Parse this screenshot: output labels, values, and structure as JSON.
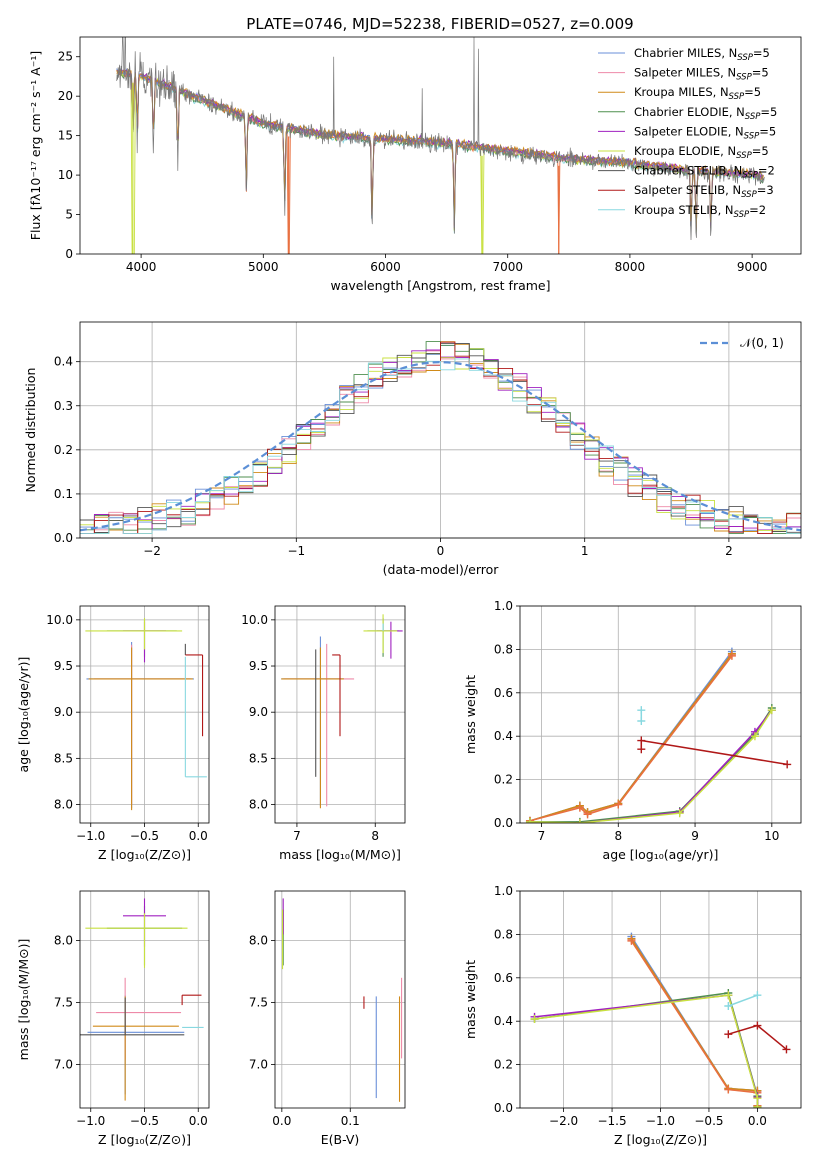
{
  "colors": {
    "Chabrier MILES": "#6a8fd8",
    "Salpeter MILES": "#ee8aa8",
    "Kroupa MILES": "#d08a18",
    "Chabrier ELODIE": "#4f8f4f",
    "Salpeter ELODIE": "#a020c0",
    "Kroupa ELODIE": "#c8e040",
    "Chabrier STELIB": "#555555",
    "Salpeter STELIB": "#b01818",
    "Kroupa STELIB": "#88d8e0",
    "normal": "#5b8fd6",
    "orange": "#e87040"
  },
  "chart_data": [
    {
      "id": "spectrum",
      "type": "line",
      "title": "PLATE=0746, MJD=52238, FIBERID=0527, z=0.009",
      "xlabel": "wavelength [Angstrom, rest frame]",
      "ylabel": "Flux [fλ10⁻¹⁷ erg cm⁻² s⁻¹ A⁻¹]",
      "xlim": [
        3500,
        9400
      ],
      "ylim": [
        0,
        27.5
      ],
      "xticks": [
        "4000",
        "5000",
        "6000",
        "7000",
        "8000",
        "9000"
      ],
      "yticks": [
        "0",
        "5",
        "10",
        "15",
        "20",
        "25"
      ],
      "grid": false,
      "legend_position": "top-right",
      "legend": [
        {
          "key": "Chabrier MILES",
          "name": "Chabrier MILES, N",
          "sub": "SSP",
          "suffix": "=5"
        },
        {
          "key": "Salpeter MILES",
          "name": "Salpeter MILES, N",
          "sub": "SSP",
          "suffix": "=5"
        },
        {
          "key": "Kroupa MILES",
          "name": "Kroupa MILES, N",
          "sub": "SSP",
          "suffix": "=5"
        },
        {
          "key": "Chabrier ELODIE",
          "name": "Chabrier ELODIE, N",
          "sub": "SSP",
          "suffix": "=5"
        },
        {
          "key": "Salpeter ELODIE",
          "name": "Salpeter ELODIE, N",
          "sub": "SSP",
          "suffix": "=5"
        },
        {
          "key": "Kroupa ELODIE",
          "name": "Kroupa ELODIE, N",
          "sub": "SSP",
          "suffix": "=5"
        },
        {
          "key": "Chabrier STELIB",
          "name": "Chabrier STELIB, N",
          "sub": "SSP",
          "suffix": "=2"
        },
        {
          "key": "Salpeter STELIB",
          "name": "Salpeter STELIB, N",
          "sub": "SSP",
          "suffix": "=3"
        },
        {
          "key": "Kroupa STELIB",
          "name": "Kroupa STELIB, N",
          "sub": "SSP",
          "suffix": "=2"
        }
      ],
      "continuum": [
        [
          3800,
          23
        ],
        [
          4000,
          22.5
        ],
        [
          4500,
          19.5
        ],
        [
          5000,
          16.5
        ],
        [
          5500,
          15
        ],
        [
          6000,
          14.5
        ],
        [
          6500,
          14
        ],
        [
          7000,
          13
        ],
        [
          7500,
          12
        ],
        [
          8000,
          11.5
        ],
        [
          8500,
          10.5
        ],
        [
          9000,
          10
        ],
        [
          9100,
          9.5
        ]
      ],
      "absorption_lines": [
        [
          3934,
          8
        ],
        [
          3969,
          9
        ],
        [
          4101,
          10
        ],
        [
          4300,
          10
        ],
        [
          4861,
          11
        ],
        [
          5175,
          12
        ],
        [
          5890,
          13
        ],
        [
          6563,
          12
        ],
        [
          8500,
          9
        ],
        [
          8542,
          9
        ],
        [
          8662,
          9
        ]
      ],
      "spikes": [
        [
          5577,
          25
        ],
        [
          6300,
          21
        ],
        [
          6725,
          27.5
        ],
        [
          6760,
          26
        ],
        [
          3850,
          27.5
        ],
        [
          3870,
          27.5
        ]
      ],
      "dropouts": [
        [
          3920,
          3945,
          "Kroupa ELODIE"
        ],
        [
          5200,
          5215,
          "orange"
        ],
        [
          6780,
          6800,
          "Kroupa ELODIE"
        ],
        [
          7410,
          7425,
          "orange"
        ]
      ]
    },
    {
      "id": "residuals",
      "type": "histogram",
      "xlabel": "(data-model)/error",
      "ylabel": "Normed distribution",
      "xlim": [
        -2.5,
        2.5
      ],
      "ylim": [
        0,
        0.49
      ],
      "xticks": [
        "−2",
        "−1",
        "0",
        "1",
        "2"
      ],
      "yticks": [
        "0.0",
        "0.1",
        "0.2",
        "0.3",
        "0.4"
      ],
      "grid": true,
      "legend_position": "top-right",
      "legend_label": "𝒩(0, 1)",
      "bin_width": 0.1
    },
    {
      "id": "age-vs-Z",
      "type": "errorbar",
      "xlabel": "Z [log₁₀(Z/Z⊙)]",
      "ylabel": "age  [log₁₀(age/yr)]",
      "xlim": [
        -1.1,
        0.1
      ],
      "ylim": [
        7.8,
        10.15
      ],
      "xticks": [
        "−1.0",
        "−0.5",
        "0.0"
      ],
      "yticks": [
        "8.0",
        "8.5",
        "9.0",
        "9.5",
        "10.0"
      ],
      "grid": true,
      "points": [
        {
          "key": "Chabrier MILES",
          "x": -0.62,
          "y": 9.36,
          "xerr": [
            0.42,
            0.58
          ],
          "yerr": [
            1.4,
            0.4
          ]
        },
        {
          "key": "Salpeter MILES",
          "x": -0.62,
          "y": 9.36,
          "xerr": [
            0.35,
            0.55
          ],
          "yerr": [
            1.36,
            0.37
          ]
        },
        {
          "key": "Kroupa MILES",
          "x": -0.62,
          "y": 9.36,
          "xerr": [
            0.4,
            0.57
          ],
          "yerr": [
            1.42,
            0.34
          ]
        },
        {
          "key": "Chabrier ELODIE",
          "x": -0.5,
          "y": 9.88,
          "xerr": [
            0.35,
            0.3
          ],
          "yerr": [
            0.28,
            0.12
          ]
        },
        {
          "key": "Salpeter ELODIE",
          "x": -0.5,
          "y": 9.88,
          "xerr": [
            0.2,
            0.2
          ],
          "yerr": [
            0.34,
            0.1
          ]
        },
        {
          "key": "Kroupa ELODIE",
          "x": -0.5,
          "y": 9.88,
          "xerr": [
            0.55,
            0.35
          ],
          "yerr": [
            0.2,
            0.14
          ]
        },
        {
          "key": "Chabrier STELIB",
          "x": -0.12,
          "y": 9.62,
          "xerr": [
            0,
            0
          ],
          "yerr": [
            0,
            0.12
          ]
        },
        {
          "key": "Salpeter STELIB",
          "x": 0.04,
          "y": 9.62,
          "xerr": [
            0.16,
            0
          ],
          "yerr": [
            0.88,
            0
          ]
        },
        {
          "key": "Kroupa STELIB",
          "x": -0.12,
          "y": 8.3,
          "xerr": [
            0,
            0.2
          ],
          "yerr": [
            0,
            1.3
          ]
        }
      ]
    },
    {
      "id": "age-vs-mass",
      "type": "errorbar",
      "xlabel": "mass [log₁₀(M/M⊙)]",
      "xlim": [
        6.72,
        8.38
      ],
      "ylim": [
        7.8,
        10.15
      ],
      "xticks": [
        "7",
        "8"
      ],
      "yticks": [
        "8.0",
        "8.5",
        "9.0",
        "9.5",
        "10.0"
      ],
      "grid": true,
      "points": [
        {
          "key": "Chabrier MILES",
          "x": 7.3,
          "y": 9.36,
          "xerr": [
            0.5,
            0.3
          ],
          "yerr": [
            1.38,
            0.46
          ]
        },
        {
          "key": "Salpeter MILES",
          "x": 7.38,
          "y": 9.36,
          "xerr": [
            0.55,
            0.35
          ],
          "yerr": [
            1.38,
            0.38
          ]
        },
        {
          "key": "Kroupa MILES",
          "x": 7.3,
          "y": 9.36,
          "xerr": [
            0.5,
            0.3
          ],
          "yerr": [
            1.4,
            0.34
          ]
        },
        {
          "key": "Chabrier ELODIE",
          "x": 8.1,
          "y": 9.88,
          "xerr": [
            0.2,
            0.2
          ],
          "yerr": [
            0.28,
            0.14
          ]
        },
        {
          "key": "Salpeter ELODIE",
          "x": 8.2,
          "y": 9.88,
          "xerr": [
            0.18,
            0.15
          ],
          "yerr": [
            0.3,
            0.1
          ]
        },
        {
          "key": "Kroupa ELODIE",
          "x": 8.1,
          "y": 9.88,
          "xerr": [
            0.25,
            0.18
          ],
          "yerr": [
            0.24,
            0.18
          ]
        },
        {
          "key": "Chabrier STELIB",
          "x": 7.24,
          "y": 9.36,
          "xerr": [
            0,
            0
          ],
          "yerr": [
            1.06,
            0.32
          ]
        },
        {
          "key": "Salpeter STELIB",
          "x": 7.55,
          "y": 9.62,
          "xerr": [
            0.1,
            0
          ],
          "yerr": [
            0.88,
            0
          ]
        },
        {
          "key": "Kroupa STELIB",
          "x": 8.1,
          "y": 9.88,
          "xerr": [
            0,
            0
          ],
          "yerr": [
            0,
            0.08
          ]
        }
      ]
    },
    {
      "id": "weight-vs-age",
      "type": "line",
      "xlabel": "age  [log₁₀(age/yr)]",
      "ylabel": "mass weight",
      "xlim": [
        6.72,
        10.38
      ],
      "ylim": [
        0,
        1.0
      ],
      "xticks": [
        "7",
        "8",
        "9",
        "10"
      ],
      "yticks": [
        "0.0",
        "0.2",
        "0.4",
        "0.6",
        "0.8",
        "1.0"
      ],
      "grid": true,
      "series": [
        {
          "key": "Chabrier MILES",
          "x": [
            6.85,
            7.5,
            7.6,
            8.0,
            9.48
          ],
          "y": [
            0.01,
            0.08,
            0.05,
            0.09,
            0.79
          ]
        },
        {
          "key": "Salpeter MILES",
          "x": [
            6.85,
            7.5,
            7.6,
            8.0,
            9.48
          ],
          "y": [
            0.01,
            0.075,
            0.045,
            0.085,
            0.775
          ]
        },
        {
          "key": "Kroupa MILES",
          "x": [
            6.85,
            7.5,
            7.6,
            8.0,
            9.48
          ],
          "y": [
            0.01,
            0.08,
            0.05,
            0.09,
            0.78
          ]
        },
        {
          "key": "orange",
          "x": [
            6.85,
            7.5,
            7.6,
            8.0,
            9.48
          ],
          "y": [
            0.01,
            0.07,
            0.04,
            0.085,
            0.77
          ]
        },
        {
          "key": "Chabrier ELODIE",
          "x": [
            6.85,
            7.5,
            8.8,
            9.78,
            10.0
          ],
          "y": [
            0.005,
            0.005,
            0.055,
            0.41,
            0.53
          ]
        },
        {
          "key": "Salpeter ELODIE",
          "x": [
            6.85,
            7.5,
            8.8,
            9.78,
            10.0
          ],
          "y": [
            0.0,
            0.0,
            0.05,
            0.42,
            0.52
          ]
        },
        {
          "key": "Kroupa ELODIE",
          "x": [
            6.85,
            7.5,
            8.8,
            9.78,
            10.0
          ],
          "y": [
            0.005,
            0.0,
            0.045,
            0.4,
            0.52
          ]
        },
        {
          "key": "Salpeter STELIB",
          "x": [
            8.3,
            8.3,
            10.2
          ],
          "y": [
            0.34,
            0.38,
            0.27
          ]
        },
        {
          "key": "Kroupa STELIB",
          "x": [
            8.3,
            8.3
          ],
          "y": [
            0.47,
            0.52
          ]
        }
      ]
    },
    {
      "id": "mass-vs-Z",
      "type": "errorbar",
      "xlabel": "Z [log₁₀(Z/Z⊙)]",
      "ylabel": "mass [log₁₀(M/M⊙)]",
      "xlim": [
        -1.1,
        0.1
      ],
      "ylim": [
        6.65,
        8.4
      ],
      "xticks": [
        "−1.0",
        "−0.5",
        "0.0"
      ],
      "yticks": [
        "7.0",
        "7.5",
        "8.0"
      ],
      "grid": true,
      "points": [
        {
          "key": "Chabrier MILES",
          "x": -0.68,
          "y": 7.26,
          "xerr": [
            0.35,
            0.55
          ],
          "yerr": [
            0.5,
            0.3
          ]
        },
        {
          "key": "Salpeter MILES",
          "x": -0.68,
          "y": 7.42,
          "xerr": [
            0.27,
            0.52
          ],
          "yerr": [
            0.38,
            0.28
          ]
        },
        {
          "key": "Kroupa MILES",
          "x": -0.68,
          "y": 7.31,
          "xerr": [
            0.3,
            0.5
          ],
          "yerr": [
            0.6,
            0.24
          ]
        },
        {
          "key": "Chabrier ELODIE",
          "x": -0.5,
          "y": 8.1,
          "xerr": [
            0.35,
            0.35
          ],
          "yerr": [
            0.3,
            0.18
          ]
        },
        {
          "key": "Salpeter ELODIE",
          "x": -0.5,
          "y": 8.2,
          "xerr": [
            0.2,
            0.2
          ],
          "yerr": [
            0.25,
            0.14
          ]
        },
        {
          "key": "Kroupa ELODIE",
          "x": -0.5,
          "y": 8.1,
          "xerr": [
            0.55,
            0.4
          ],
          "yerr": [
            0.32,
            0.12
          ]
        },
        {
          "key": "Chabrier STELIB",
          "x": -0.68,
          "y": 7.24,
          "xerr": [
            0.5,
            0.55
          ],
          "yerr": [
            0,
            0.3
          ]
        },
        {
          "key": "Salpeter STELIB",
          "x": -0.15,
          "y": 7.56,
          "xerr": [
            0,
            0.18
          ],
          "yerr": [
            0.08,
            0
          ]
        },
        {
          "key": "Kroupa STELIB",
          "x": -0.15,
          "y": 7.3,
          "xerr": [
            0,
            0.2
          ],
          "yerr": [
            0,
            0
          ]
        }
      ]
    },
    {
      "id": "mass-vs-EBV",
      "type": "errorbar",
      "xlabel": "E(B-V)",
      "xlim": [
        -0.01,
        0.18
      ],
      "ylim": [
        6.65,
        8.4
      ],
      "xticks": [
        "0.0",
        "0.1"
      ],
      "yticks": [
        "7.0",
        "7.5",
        "8.0"
      ],
      "grid": true,
      "points": [
        {
          "key": "Chabrier MILES",
          "x": 0.138,
          "y": 7.25,
          "xerr": [
            0,
            0
          ],
          "yerr": [
            0.52,
            0.3
          ]
        },
        {
          "key": "Salpeter MILES",
          "x": 0.175,
          "y": 7.35,
          "xerr": [
            0,
            0
          ],
          "yerr": [
            0.3,
            0.35
          ]
        },
        {
          "key": "Kroupa MILES",
          "x": 0.172,
          "y": 7.25,
          "xerr": [
            0,
            0
          ],
          "yerr": [
            0.55,
            0.3
          ]
        },
        {
          "key": "Chabrier ELODIE",
          "x": 0.002,
          "y": 8.1,
          "xerr": [
            0,
            0
          ],
          "yerr": [
            0.3,
            0.15
          ]
        },
        {
          "key": "Salpeter ELODIE",
          "x": 0.002,
          "y": 8.2,
          "xerr": [
            0,
            0
          ],
          "yerr": [
            0.15,
            0.14
          ]
        },
        {
          "key": "Kroupa ELODIE",
          "x": 0.001,
          "y": 8.05,
          "xerr": [
            0,
            0
          ],
          "yerr": [
            0.28,
            0.2
          ]
        },
        {
          "key": "Salpeter STELIB",
          "x": 0.12,
          "y": 7.5,
          "xerr": [
            0,
            0
          ],
          "yerr": [
            0.05,
            0.05
          ]
        }
      ]
    },
    {
      "id": "weight-vs-Z",
      "type": "line",
      "xlabel": "Z [log₁₀(Z/Z⊙)]",
      "ylabel": "mass weight",
      "xlim": [
        -2.45,
        0.45
      ],
      "ylim": [
        0,
        1.0
      ],
      "xticks": [
        "−2.0",
        "−1.5",
        "−1.0",
        "−0.5",
        "0.0"
      ],
      "yticks": [
        "0.0",
        "0.2",
        "0.4",
        "0.6",
        "0.8",
        "1.0"
      ],
      "grid": true,
      "series": [
        {
          "key": "Chabrier MILES",
          "x": [
            -1.3,
            -0.3,
            0.0,
            0.0
          ],
          "y": [
            0.79,
            0.09,
            0.08,
            0.01
          ]
        },
        {
          "key": "Salpeter MILES",
          "x": [
            -1.3,
            -0.3,
            0.0,
            0.0
          ],
          "y": [
            0.775,
            0.085,
            0.075,
            0.01
          ]
        },
        {
          "key": "Kroupa MILES",
          "x": [
            -1.3,
            -0.3,
            0.0,
            0.0
          ],
          "y": [
            0.78,
            0.09,
            0.08,
            0.01
          ]
        },
        {
          "key": "orange",
          "x": [
            -1.3,
            -0.3,
            0.0,
            0.0
          ],
          "y": [
            0.77,
            0.085,
            0.07,
            0.01
          ]
        },
        {
          "key": "Chabrier ELODIE",
          "x": [
            -2.3,
            -0.3,
            0.0,
            0.0
          ],
          "y": [
            0.41,
            0.53,
            0.055,
            0.005
          ]
        },
        {
          "key": "Salpeter ELODIE",
          "x": [
            -2.3,
            -0.3,
            0.0,
            0.0
          ],
          "y": [
            0.42,
            0.52,
            0.05,
            0.0
          ]
        },
        {
          "key": "Kroupa ELODIE",
          "x": [
            -2.3,
            -0.3,
            0.0,
            0.0
          ],
          "y": [
            0.41,
            0.52,
            0.045,
            0.005
          ]
        },
        {
          "key": "Salpeter STELIB",
          "x": [
            -0.3,
            0.0,
            0.3
          ],
          "y": [
            0.34,
            0.38,
            0.27
          ]
        },
        {
          "key": "Kroupa STELIB",
          "x": [
            -0.3,
            0.0
          ],
          "y": [
            0.47,
            0.52
          ]
        }
      ]
    }
  ]
}
